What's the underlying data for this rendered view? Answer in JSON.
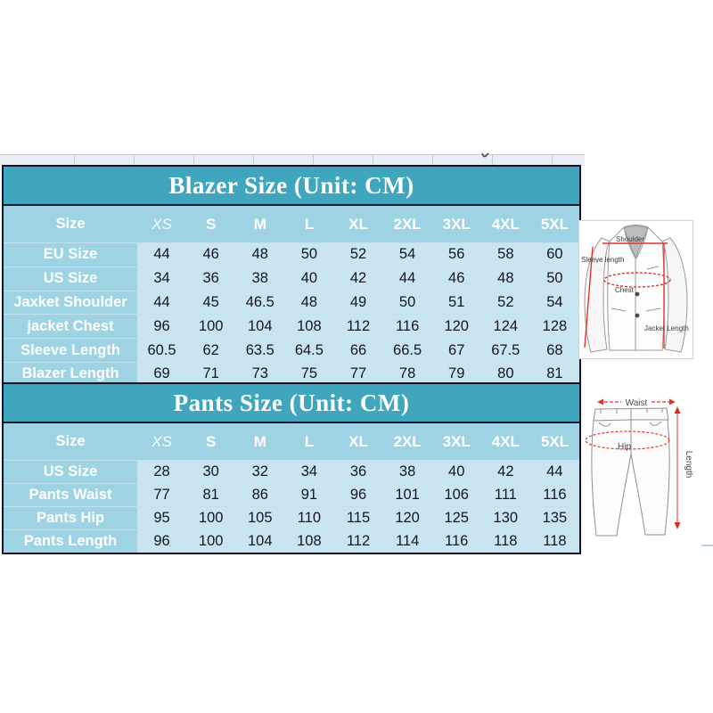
{
  "colors": {
    "header_teal": "#3fa6bd",
    "band_blue": "#9dd3e2",
    "cell_blue": "#c8e5f0",
    "border_dark": "#14142b",
    "measure_red": "#e0352a",
    "art_gray": "#969696"
  },
  "blazer_table": {
    "title": "Blazer Size (Unit: CM)",
    "size_label": "Size",
    "columns": [
      "XS",
      "S",
      "M",
      "L",
      "XL",
      "2XL",
      "3XL",
      "4XL",
      "5XL"
    ],
    "rows": [
      {
        "label": "EU Size",
        "values": [
          "44",
          "46",
          "48",
          "50",
          "52",
          "54",
          "56",
          "58",
          "60"
        ]
      },
      {
        "label": "US Size",
        "values": [
          "34",
          "36",
          "38",
          "40",
          "42",
          "44",
          "46",
          "48",
          "50"
        ]
      },
      {
        "label": "Jaxket Shoulder",
        "values": [
          "44",
          "45",
          "46.5",
          "48",
          "49",
          "50",
          "51",
          "52",
          "54"
        ]
      },
      {
        "label": "jacket Chest",
        "values": [
          "96",
          "100",
          "104",
          "108",
          "112",
          "116",
          "120",
          "124",
          "128"
        ]
      },
      {
        "label": "Sleeve Length",
        "values": [
          "60.5",
          "62",
          "63.5",
          "64.5",
          "66",
          "66.5",
          "67",
          "67.5",
          "68"
        ]
      },
      {
        "label": "Blazer Length",
        "values": [
          "69",
          "71",
          "73",
          "75",
          "77",
          "78",
          "79",
          "80",
          "81"
        ]
      }
    ]
  },
  "pants_table": {
    "title": "Pants Size (Unit: CM)",
    "size_label": "Size",
    "columns": [
      "XS",
      "S",
      "M",
      "L",
      "XL",
      "2XL",
      "3XL",
      "4XL",
      "5XL"
    ],
    "rows": [
      {
        "label": "US Size",
        "values": [
          "28",
          "30",
          "32",
          "34",
          "36",
          "38",
          "40",
          "42",
          "44"
        ]
      },
      {
        "label": "Pants Waist",
        "values": [
          "77",
          "81",
          "86",
          "91",
          "96",
          "101",
          "106",
          "111",
          "116"
        ]
      },
      {
        "label": "Pants Hip",
        "values": [
          "95",
          "100",
          "105",
          "110",
          "115",
          "120",
          "125",
          "130",
          "135"
        ]
      },
      {
        "label": "Pants Length",
        "values": [
          "96",
          "100",
          "104",
          "108",
          "112",
          "114",
          "116",
          "118",
          "118"
        ]
      }
    ]
  },
  "blazer_diagram": {
    "labels": {
      "shoulder": "Shoulder",
      "sleeve_length": "Sleeve length",
      "chest": "Chest",
      "jacket_length": "Jacket Length"
    }
  },
  "pants_diagram": {
    "labels": {
      "waist": "Waist",
      "hip": "Hip",
      "length": "Length"
    }
  }
}
